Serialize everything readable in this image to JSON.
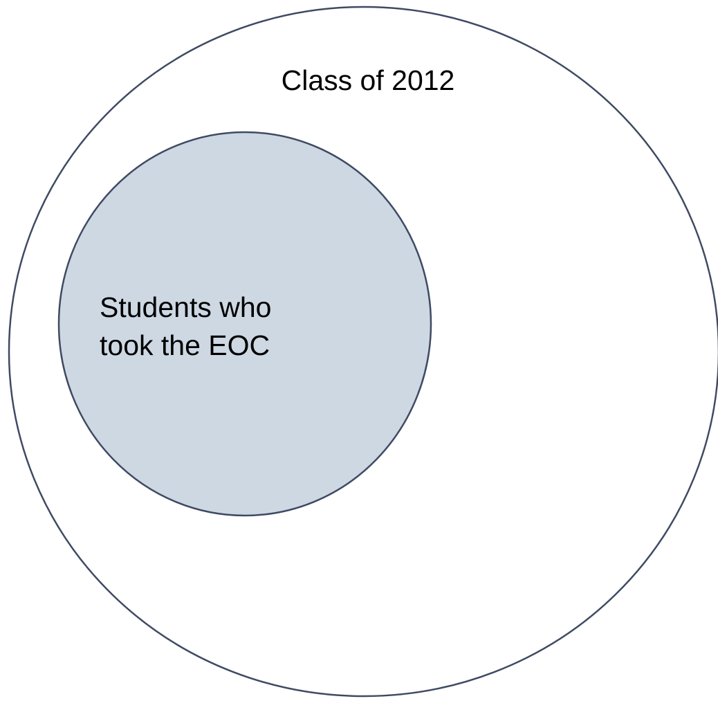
{
  "diagram": {
    "outer_set": {
      "label": "Class of 2012",
      "fill": "#ffffff",
      "stroke": "#3f4a63"
    },
    "inner_set": {
      "label_lines": [
        "Students who",
        "took the EOC"
      ],
      "fill": "#cdd8e3",
      "stroke": "#3f4a63"
    }
  }
}
